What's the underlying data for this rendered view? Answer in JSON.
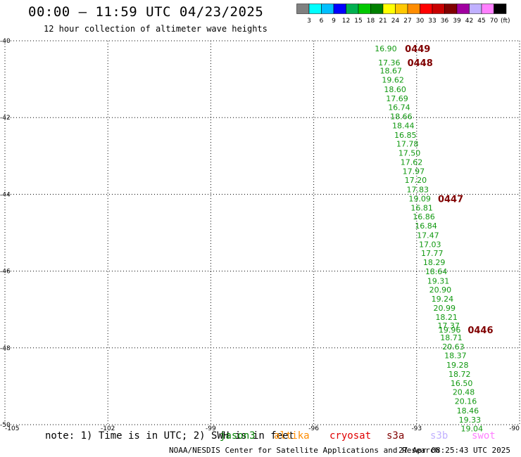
{
  "header": {
    "title": "00:00 – 11:59 UTC 04/23/2025",
    "subtitle": "12 hour collection of altimeter wave heights"
  },
  "colorbar": {
    "colors": [
      "#808080",
      "#00ffff",
      "#00bfff",
      "#0000ff",
      "#00b050",
      "#00c800",
      "#008000",
      "#ffff00",
      "#ffc800",
      "#ff8c00",
      "#ff0000",
      "#c80000",
      "#800000",
      "#a000a0",
      "#c0b0ff",
      "#ff80ff",
      "#000000"
    ],
    "labels": [
      "3",
      "6",
      "9",
      "12",
      "15",
      "18",
      "21",
      "24",
      "27",
      "30",
      "33",
      "36",
      "39",
      "42",
      "45",
      "70"
    ],
    "unit": "(ft)"
  },
  "chart_data": {
    "type": "scatter",
    "title": "00:00 – 11:59 UTC 04/23/2025",
    "subtitle": "12 hour collection of altimeter wave heights",
    "xlim": [
      -105,
      -90
    ],
    "ylim": [
      -50,
      -40
    ],
    "x_ticks": [
      "-105",
      "-102",
      "-99",
      "-96",
      "-93",
      "-90"
    ],
    "x_tick_values": [
      -105,
      -102,
      -99,
      -96,
      -93,
      -90
    ],
    "y_ticks": [
      "-40",
      "-42",
      "-44",
      "-46",
      "-48",
      "-50"
    ],
    "y_tick_values": [
      -40,
      -42,
      -44,
      -46,
      -48,
      -50
    ],
    "grid": true,
    "series": [
      {
        "name": "jason3",
        "color": "#119911",
        "points": [
          {
            "lon": -93.9,
            "lat": -40.2,
            "swh": "16.90"
          },
          {
            "lon": -93.8,
            "lat": -40.57,
            "swh": "17.36"
          },
          {
            "lon": -93.75,
            "lat": -40.78,
            "swh": "18.67"
          },
          {
            "lon": -93.69,
            "lat": -41.02,
            "swh": "19.62"
          },
          {
            "lon": -93.63,
            "lat": -41.26,
            "swh": "18.60"
          },
          {
            "lon": -93.57,
            "lat": -41.5,
            "swh": "17.69"
          },
          {
            "lon": -93.51,
            "lat": -41.73,
            "swh": "16.74"
          },
          {
            "lon": -93.45,
            "lat": -41.97,
            "swh": "18.66"
          },
          {
            "lon": -93.39,
            "lat": -42.21,
            "swh": "18.44"
          },
          {
            "lon": -93.33,
            "lat": -42.45,
            "swh": "16.85"
          },
          {
            "lon": -93.27,
            "lat": -42.68,
            "swh": "17.78"
          },
          {
            "lon": -93.21,
            "lat": -42.92,
            "swh": "17.50"
          },
          {
            "lon": -93.15,
            "lat": -43.16,
            "swh": "17.62"
          },
          {
            "lon": -93.09,
            "lat": -43.4,
            "swh": "17.97"
          },
          {
            "lon": -93.03,
            "lat": -43.63,
            "swh": "17.20"
          },
          {
            "lon": -92.97,
            "lat": -43.87,
            "swh": "17.83"
          },
          {
            "lon": -92.91,
            "lat": -44.11,
            "swh": "19.09"
          },
          {
            "lon": -92.85,
            "lat": -44.35,
            "swh": "16.81"
          },
          {
            "lon": -92.79,
            "lat": -44.58,
            "swh": "16.86"
          },
          {
            "lon": -92.73,
            "lat": -44.82,
            "swh": "16.84"
          },
          {
            "lon": -92.67,
            "lat": -45.06,
            "swh": "17.47"
          },
          {
            "lon": -92.61,
            "lat": -45.3,
            "swh": "17.03"
          },
          {
            "lon": -92.55,
            "lat": -45.53,
            "swh": "17.77"
          },
          {
            "lon": -92.49,
            "lat": -45.77,
            "swh": "18.29"
          },
          {
            "lon": -92.43,
            "lat": -46.01,
            "swh": "18.64"
          },
          {
            "lon": -92.37,
            "lat": -46.25,
            "swh": "19.31"
          },
          {
            "lon": -92.31,
            "lat": -46.48,
            "swh": "20.90"
          },
          {
            "lon": -92.25,
            "lat": -46.72,
            "swh": "19.24"
          },
          {
            "lon": -92.19,
            "lat": -46.96,
            "swh": "20.99"
          },
          {
            "lon": -92.13,
            "lat": -47.2,
            "swh": "18.21"
          },
          {
            "lon": -92.07,
            "lat": -47.42,
            "swh": "17.37"
          },
          {
            "lon": -92.04,
            "lat": -47.53,
            "swh": "19.96"
          },
          {
            "lon": -91.99,
            "lat": -47.73,
            "swh": "18.71"
          },
          {
            "lon": -91.93,
            "lat": -47.97,
            "swh": "20.63"
          },
          {
            "lon": -91.87,
            "lat": -48.2,
            "swh": "18.37"
          },
          {
            "lon": -91.81,
            "lat": -48.44,
            "swh": "19.28"
          },
          {
            "lon": -91.75,
            "lat": -48.68,
            "swh": "18.72"
          },
          {
            "lon": -91.69,
            "lat": -48.92,
            "swh": "16.50"
          },
          {
            "lon": -91.63,
            "lat": -49.15,
            "swh": "20.48"
          },
          {
            "lon": -91.57,
            "lat": -49.39,
            "swh": "20.16"
          },
          {
            "lon": -91.51,
            "lat": -49.63,
            "swh": "18.46"
          },
          {
            "lon": -91.45,
            "lat": -49.87,
            "swh": "19.33"
          },
          {
            "lon": -91.39,
            "lat": -50.1,
            "swh": "19.04"
          }
        ]
      }
    ],
    "time_labels": [
      {
        "text": "0449",
        "lon": -92.97,
        "lat": -40.2
      },
      {
        "text": "0448",
        "lon": -92.9,
        "lat": -40.57
      },
      {
        "text": "0447",
        "lon": -92.01,
        "lat": -44.11
      },
      {
        "text": "0446",
        "lon": -91.14,
        "lat": -47.53
      }
    ],
    "time_label_color": "#800000"
  },
  "footer": {
    "note": "note:  1) Time is in UTC;  2) SWH is in feet",
    "satellites": [
      {
        "label": "jason3",
        "color": "#008000"
      },
      {
        "label": "altika",
        "color": "#ff8c00"
      },
      {
        "label": "cryosat",
        "color": "#e00000"
      },
      {
        "label": "s3a",
        "color": "#800000"
      },
      {
        "label": "s3b",
        "color": "#c0b0ff"
      },
      {
        "label": "swot",
        "color": "#ff80ff"
      }
    ],
    "credit": "NOAA/NESDIS Center for Satellite Applications and Research",
    "timestamp": "27 Apr 08:25:43 UTC 2025"
  }
}
